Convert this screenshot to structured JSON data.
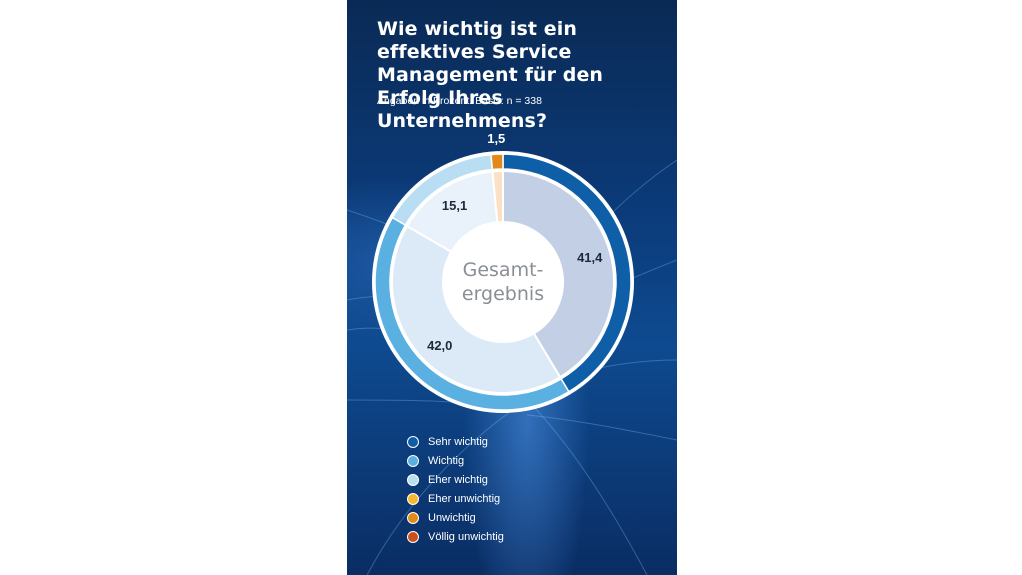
{
  "chart_data": {
    "type": "pie",
    "title": "Wie wichtig ist ein effektives Service Management für den Erfolg Ihres Unternehmens?",
    "subtitle": "Angaben in Prozent. Basis: n = 338",
    "center_label": "Gesamt-\nergebnis",
    "center_label_lines": [
      "Gesamt-",
      "ergebnis"
    ],
    "categories": [
      "Sehr wichtig",
      "Wichtig",
      "Eher wichtig",
      "Eher unwichtig",
      "Unwichtig",
      "Völlig unwichtig"
    ],
    "values": [
      41.4,
      42.0,
      15.1,
      0,
      1.5,
      0
    ],
    "data_labels": [
      "41,4",
      "42,0",
      "15,1",
      "",
      "1,5",
      ""
    ],
    "outer_colors": [
      "#0f5fa8",
      "#5ab0e0",
      "#b9ddf3",
      "#f5b82e",
      "#e08a1e",
      "#c8501e"
    ],
    "inner_colors": [
      "#c3cfe5",
      "#dce9f7",
      "#e9f2fb",
      "#fde9c2",
      "#fbe0c6",
      "#f3d2c3"
    ],
    "legend_position": "bottom-left"
  }
}
